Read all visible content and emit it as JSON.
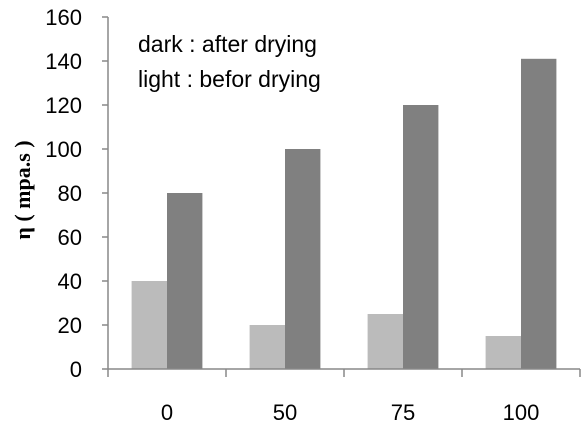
{
  "chart_data": {
    "type": "bar",
    "categories": [
      "0",
      "50",
      "75",
      "100"
    ],
    "series": [
      {
        "values": [
          40,
          20,
          25,
          15
        ],
        "color": "#bbbbbb"
      },
      {
        "values": [
          80,
          100,
          120,
          141
        ],
        "color": "#808080"
      }
    ],
    "ylabel": "η ( mpa.s )",
    "ylim": [
      0,
      160
    ],
    "yticks": [
      0,
      20,
      40,
      60,
      80,
      100,
      120,
      140,
      160
    ],
    "grid": false,
    "annotations": [
      "dark : after drying",
      "light : befor drying"
    ]
  }
}
